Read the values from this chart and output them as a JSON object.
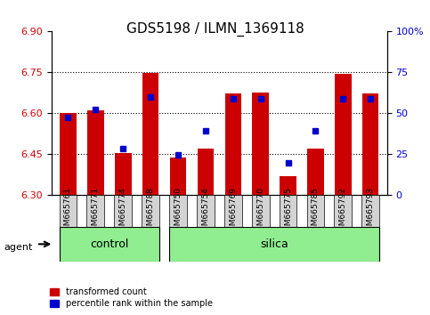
{
  "title": "GDS5198 / ILMN_1369118",
  "samples": [
    "GSM665761",
    "GSM665771",
    "GSM665774",
    "GSM665788",
    "GSM665750",
    "GSM665754",
    "GSM665769",
    "GSM665770",
    "GSM665775",
    "GSM665785",
    "GSM665792",
    "GSM665793"
  ],
  "groups": [
    "control",
    "control",
    "control",
    "control",
    "silica",
    "silica",
    "silica",
    "silica",
    "silica",
    "silica",
    "silica",
    "silica"
  ],
  "red_values": [
    6.6,
    6.61,
    6.455,
    6.748,
    6.44,
    6.47,
    6.672,
    6.675,
    6.37,
    6.47,
    6.745,
    6.672
  ],
  "blue_values": [
    6.585,
    6.615,
    6.47,
    6.66,
    6.447,
    6.535,
    6.655,
    6.655,
    6.42,
    6.535,
    6.655,
    6.655
  ],
  "ylim_left": [
    6.3,
    6.9
  ],
  "ylim_right": [
    0,
    100
  ],
  "yticks_left": [
    6.3,
    6.45,
    6.6,
    6.75,
    6.9
  ],
  "yticks_right": [
    0,
    25,
    50,
    75,
    100
  ],
  "ytick_labels_right": [
    "0",
    "25",
    "50",
    "75",
    "100%"
  ],
  "grid_vals": [
    6.45,
    6.6,
    6.75
  ],
  "bar_bottom": 6.3,
  "bar_width": 0.6,
  "red_color": "#cc0000",
  "blue_color": "#0000cc",
  "control_color": "#90ee90",
  "silica_color": "#90ee90",
  "group_label_color": "black",
  "agent_label": "agent",
  "control_label": "control",
  "silica_label": "silica",
  "legend_red": "transformed count",
  "legend_blue": "percentile rank within the sample",
  "title_fontsize": 11,
  "tick_fontsize": 8,
  "label_fontsize": 8
}
